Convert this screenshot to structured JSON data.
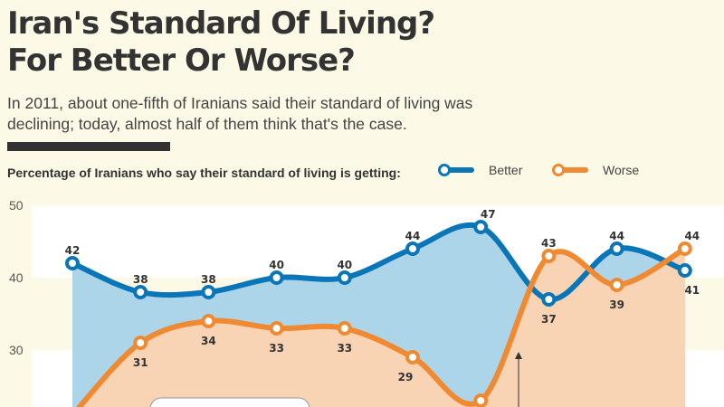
{
  "header": {
    "title_line1": "Iran's Standard Of Living?",
    "title_line2": "For Better Or Worse?",
    "subtitle": "In 2011, about one-fifth of Iranians said their standard of living was declining; today, almost half of them think that's the case."
  },
  "colors": {
    "better": "#0a76b7",
    "worse": "#ef8a33",
    "better_fill": "#acd5ea",
    "worse_fill": "#f8d3b4",
    "background": "#fcf9e6",
    "band": "#ffffff"
  },
  "chart_data": {
    "type": "line",
    "title": "Percentage of Iranians who say their standard of living is getting:",
    "xlabel": "",
    "ylabel": "",
    "ylim": [
      20,
      50
    ],
    "yticks": [
      30,
      40,
      50
    ],
    "x": [
      1,
      2,
      3,
      4,
      5,
      6,
      7,
      8,
      9,
      10
    ],
    "legend": [
      "Better",
      "Worse"
    ],
    "legend_position": "top",
    "series": [
      {
        "name": "Better",
        "values": [
          42,
          38,
          38,
          40,
          40,
          44,
          47,
          37,
          44,
          41
        ]
      },
      {
        "name": "Worse",
        "values": [
          21,
          31,
          34,
          33,
          33,
          29,
          23,
          43,
          39,
          44
        ]
      }
    ],
    "labels_shown": {
      "Better": [
        "42",
        "38",
        "38",
        "40",
        "40",
        "44",
        "47",
        "37",
        "44",
        "41"
      ],
      "Worse": [
        "",
        "31",
        "34",
        "33",
        "33",
        "29",
        "",
        "43",
        "39",
        "44"
      ]
    }
  }
}
